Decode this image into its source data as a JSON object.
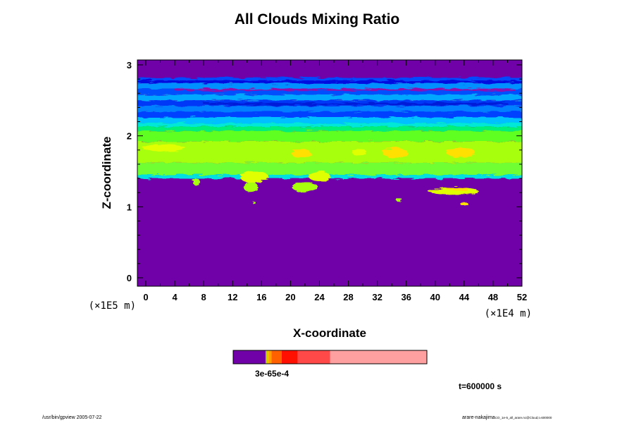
{
  "chart_data": {
    "type": "heatmap",
    "title": "All Clouds Mixing Ratio",
    "xlabel": "X-coordinate",
    "ylabel": "Z-coordinate",
    "x_scale_note": "(×1E4 m)",
    "y_scale_note": "(×1E5 m)",
    "xlim": [
      -1,
      52
    ],
    "ylim": [
      -0.1,
      3.1
    ],
    "x_ticks": [
      "0",
      "4",
      "8",
      "12",
      "16",
      "20",
      "24",
      "28",
      "32",
      "36",
      "40",
      "44",
      "48",
      "52"
    ],
    "y_ticks": [
      "0",
      "1",
      "2",
      "3"
    ],
    "background_color": "#7000a8",
    "layers": [
      {
        "z0": 2.78,
        "z1": 2.82,
        "color": "#0048ff"
      },
      {
        "z0": 2.74,
        "z1": 2.78,
        "color": "#0010e0"
      },
      {
        "z0": 2.66,
        "z1": 2.74,
        "color": "#0090ff"
      },
      {
        "z0": 2.58,
        "z1": 2.66,
        "color": "#0050ff"
      },
      {
        "z0": 2.5,
        "z1": 2.58,
        "color": "#00a8ff"
      },
      {
        "z0": 2.42,
        "z1": 2.5,
        "color": "#0038f8"
      },
      {
        "z0": 2.34,
        "z1": 2.42,
        "color": "#0080ff"
      },
      {
        "z0": 2.26,
        "z1": 2.34,
        "color": "#0040ff"
      },
      {
        "z0": 2.18,
        "z1": 2.26,
        "color": "#00c0ff"
      },
      {
        "z0": 2.13,
        "z1": 2.18,
        "color": "#00e8d8"
      },
      {
        "z0": 2.07,
        "z1": 2.13,
        "color": "#00f07a"
      },
      {
        "z0": 1.92,
        "z1": 2.07,
        "color": "#60ff20"
      },
      {
        "z0": 1.62,
        "z1": 1.92,
        "color": "#a8ff10"
      },
      {
        "z0": 1.45,
        "z1": 1.62,
        "color": "#70ff30"
      },
      {
        "z0": 1.4,
        "z1": 1.45,
        "color": "#00e0e0"
      }
    ],
    "features": [
      {
        "x": 2.5,
        "z": 1.83,
        "rx": 3.0,
        "rz": 0.05,
        "color": "#e0ff00"
      },
      {
        "x": 21.5,
        "z": 1.75,
        "rx": 1.3,
        "rz": 0.07,
        "color": "#ffe000"
      },
      {
        "x": 29.5,
        "z": 1.77,
        "rx": 1.0,
        "rz": 0.05,
        "color": "#e0ff00"
      },
      {
        "x": 34.5,
        "z": 1.76,
        "rx": 1.8,
        "rz": 0.07,
        "color": "#ffe000"
      },
      {
        "x": 43.5,
        "z": 1.77,
        "rx": 2.0,
        "rz": 0.07,
        "color": "#ffe000"
      },
      {
        "x": 15.0,
        "z": 1.42,
        "rx": 2.0,
        "rz": 0.08,
        "color": "#e0ff00"
      },
      {
        "x": 24.0,
        "z": 1.43,
        "rx": 1.5,
        "rz": 0.07,
        "color": "#e0ff00"
      },
      {
        "x": 14.5,
        "z": 1.28,
        "rx": 1.0,
        "rz": 0.07,
        "color": "#a8ff10"
      },
      {
        "x": 7.0,
        "z": 1.35,
        "rx": 0.5,
        "rz": 0.05,
        "color": "#a8ff10"
      },
      {
        "x": 15.0,
        "z": 1.05,
        "rx": 0.2,
        "rz": 0.02,
        "color": "#a8ff10"
      },
      {
        "x": 22.0,
        "z": 1.28,
        "rx": 1.8,
        "rz": 0.07,
        "color": "#a8ff10"
      },
      {
        "x": 35.0,
        "z": 1.1,
        "rx": 0.4,
        "rz": 0.03,
        "color": "#a8ff10"
      },
      {
        "x": 42.5,
        "z": 1.22,
        "rx": 3.5,
        "rz": 0.05,
        "color": "#e0ff00"
      },
      {
        "x": 43.0,
        "z": 1.25,
        "rx": 1.5,
        "rz": 0.02,
        "color": "#ffe000"
      },
      {
        "x": 44.0,
        "z": 1.04,
        "rx": 0.6,
        "rz": 0.02,
        "color": "#ffe000"
      }
    ],
    "bands": [
      {
        "x0": 4,
        "x1": 51,
        "z": 2.65,
        "color": "#b000a0"
      },
      {
        "x0": 8,
        "x1": 50,
        "z": 2.45,
        "color": "#0018d0"
      }
    ],
    "colorbar": {
      "segments": [
        {
          "fraction": 0.168,
          "color": "#7000a8"
        },
        {
          "fraction": 0.008,
          "color": "#b8c800"
        },
        {
          "fraction": 0.008,
          "color": "#f0c000"
        },
        {
          "fraction": 0.014,
          "color": "#ffa000"
        },
        {
          "fraction": 0.052,
          "color": "#ff6000"
        },
        {
          "fraction": 0.083,
          "color": "#ff1000"
        },
        {
          "fraction": 0.167,
          "color": "#ff4848"
        },
        {
          "fraction": 0.5,
          "color": "#ffa0a0"
        }
      ],
      "tick_label": "3e-65e-4"
    }
  },
  "time_label": "t=600000 s",
  "footer_left": "/usr/bin/gpview 2005-07-22",
  "footer_right_main": "arare-nakajima",
  "footer_right_small": "CO_1e-5_all_arare.nc@Cloud,t=600000"
}
